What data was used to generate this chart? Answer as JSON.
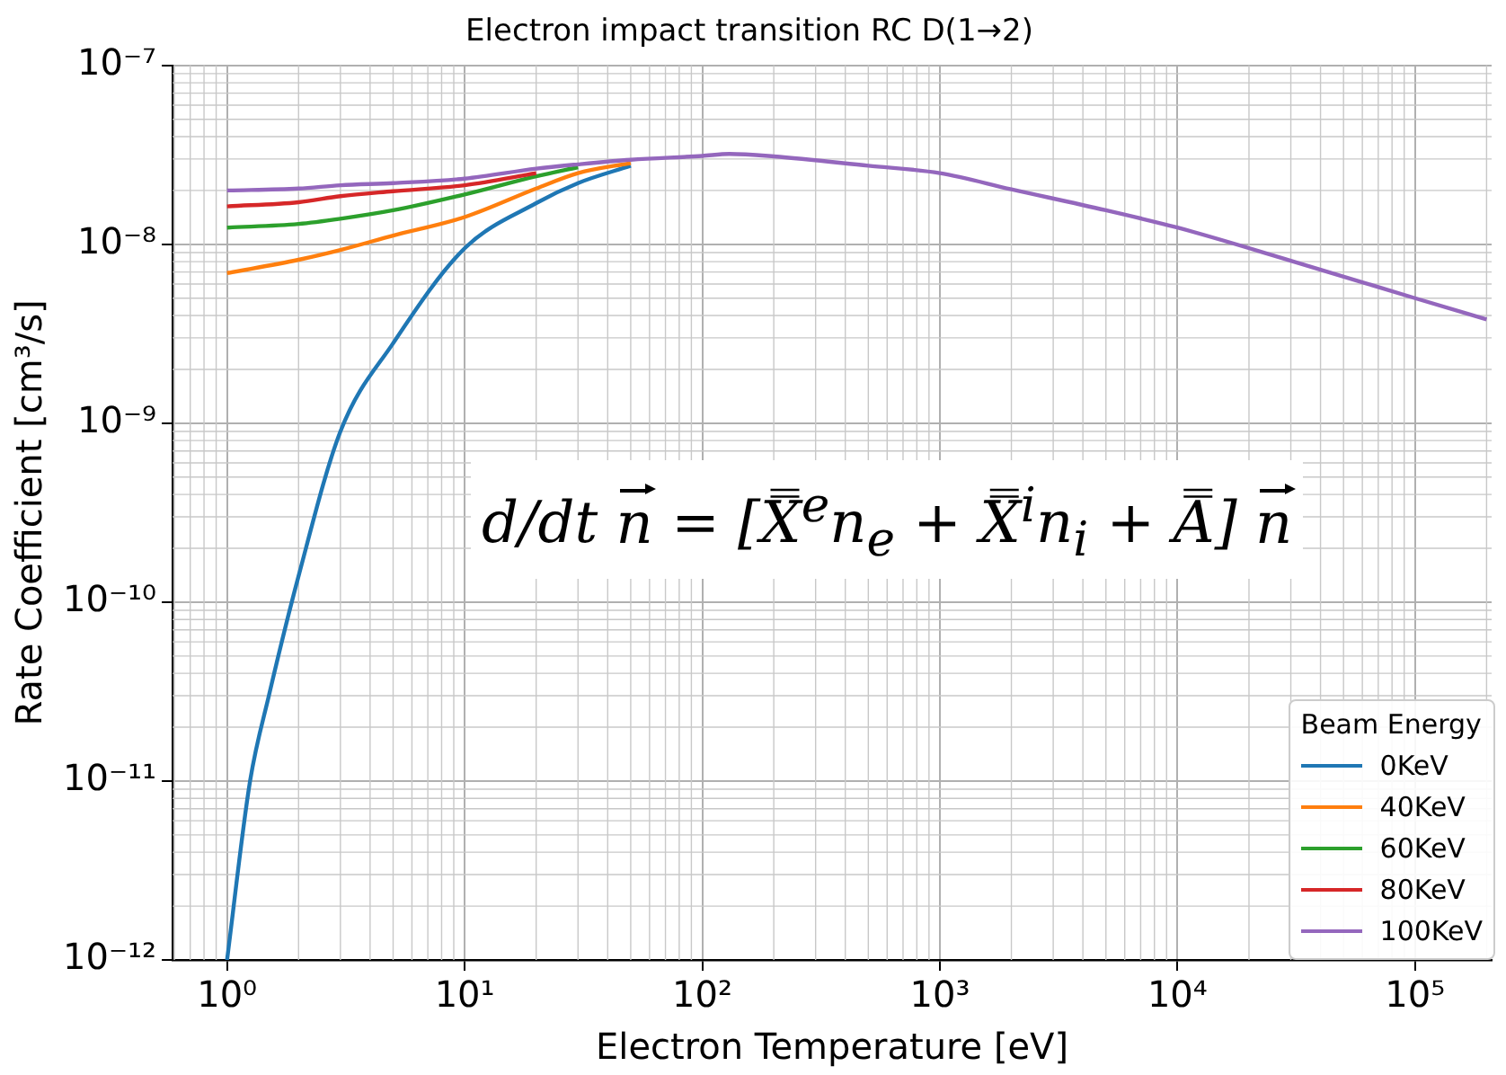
{
  "chart_data": {
    "type": "line",
    "title": "Electron impact transition RC D(1→2)",
    "xlabel": "Electron Temperature [eV]",
    "ylabel": "Rate Coefficient [cm³/s]",
    "log": "xy",
    "grid": true,
    "marker": "none",
    "line_style": "solid",
    "legend": "bottom right",
    "legend_title": "Beam Energy",
    "xlim": [
      0.59,
      210000
    ],
    "ylim": [
      1e-12,
      1e-07
    ],
    "xticks": [
      {
        "value": 1,
        "label": "10⁰"
      },
      {
        "value": 10,
        "label": "10¹"
      },
      {
        "value": 100,
        "label": "10²"
      },
      {
        "value": 1000,
        "label": "10³"
      },
      {
        "value": 10000,
        "label": "10⁴"
      },
      {
        "value": 100000,
        "label": "10⁵"
      }
    ],
    "yticks": [
      {
        "value": 1e-12,
        "label": "10⁻¹²"
      },
      {
        "value": 1e-11,
        "label": "10⁻¹¹"
      },
      {
        "value": 1e-10,
        "label": "10⁻¹⁰"
      },
      {
        "value": 1e-09,
        "label": "10⁻⁹"
      },
      {
        "value": 1e-08,
        "label": "10⁻⁸"
      },
      {
        "value": 1e-07,
        "label": "10⁻⁷"
      }
    ],
    "annotations": [
      "d/dt n⃗ = [X̿$^{e}$n$_{e}$ + X̿$^{i}$n$_{i}$ + A̿] n⃗"
    ],
    "series": [
      {
        "name": "0KeV",
        "color": "#1f77b4",
        "x": [
          1,
          1.25,
          1.5,
          2,
          3,
          5,
          10,
          20,
          30,
          50
        ],
        "values": [
          1e-12,
          1e-11,
          3e-11,
          1.4e-10,
          9e-10,
          2.8e-09,
          9.5e-09,
          1.7e-08,
          2.2e-08,
          2.75e-08
        ]
      },
      {
        "name": "40KeV",
        "color": "#ff7f0e",
        "x": [
          1,
          2,
          3,
          5,
          10,
          20,
          30,
          50
        ],
        "values": [
          6.9e-09,
          8.2e-09,
          9.3e-09,
          1.12e-08,
          1.42e-08,
          2.05e-08,
          2.5e-08,
          2.85e-08
        ]
      },
      {
        "name": "60KeV",
        "color": "#2ca02c",
        "x": [
          1,
          2,
          3,
          5,
          10,
          20,
          30
        ],
        "values": [
          1.24e-08,
          1.3e-08,
          1.39e-08,
          1.55e-08,
          1.9e-08,
          2.4e-08,
          2.7e-08
        ]
      },
      {
        "name": "80KeV",
        "color": "#d62728",
        "x": [
          1,
          2,
          3,
          5,
          10,
          20
        ],
        "values": [
          1.63e-08,
          1.72e-08,
          1.86e-08,
          1.98e-08,
          2.14e-08,
          2.5e-08
        ]
      },
      {
        "name": "100KeV",
        "color": "#9467bd",
        "x": [
          1,
          2,
          3,
          5,
          10,
          20,
          30,
          50,
          100,
          130,
          200,
          500,
          1000,
          2000,
          5000,
          10000,
          30000,
          100000,
          200000
        ],
        "values": [
          2e-08,
          2.05e-08,
          2.14e-08,
          2.2e-08,
          2.33e-08,
          2.65e-08,
          2.8e-08,
          2.97e-08,
          3.12e-08,
          3.2e-08,
          3.1e-08,
          2.75e-08,
          2.5e-08,
          2.03e-08,
          1.55e-08,
          1.24e-08,
          8.1e-09,
          5e-09,
          3.8e-09
        ]
      }
    ]
  }
}
